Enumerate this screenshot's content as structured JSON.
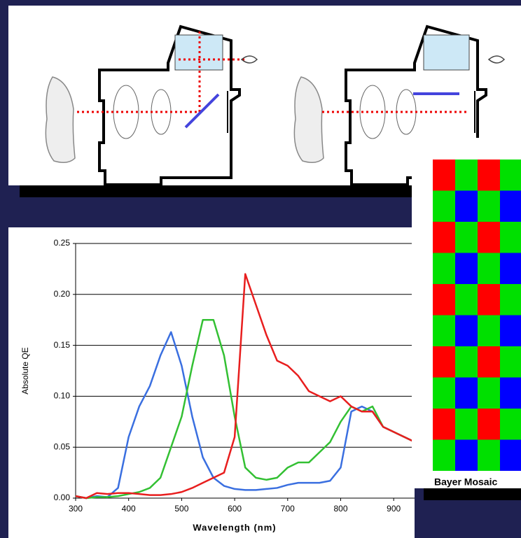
{
  "chart_data": {
    "type": "line",
    "x_label": "Wavelength (nm)",
    "y_label": "Absolute QE",
    "x": [
      300,
      320,
      340,
      360,
      380,
      400,
      420,
      440,
      460,
      480,
      500,
      520,
      540,
      560,
      580,
      600,
      620,
      640,
      660,
      680,
      700,
      720,
      740,
      760,
      780,
      800,
      820,
      840,
      860,
      880,
      900,
      920,
      940
    ],
    "series": [
      {
        "color": "#3a6fe0",
        "values": [
          0.002,
          0,
          0.002,
          0.001,
          0.01,
          0.06,
          0.09,
          0.11,
          0.14,
          0.163,
          0.13,
          0.08,
          0.04,
          0.02,
          0.012,
          0.009,
          0.008,
          0.008,
          0.009,
          0.01,
          0.013,
          0.015,
          0.015,
          0.015,
          0.017,
          0.03,
          0.085,
          0.09,
          0.085,
          0.07,
          0.065,
          0.06,
          0.055
        ]
      },
      {
        "color": "#33c033",
        "values": [
          0.002,
          0,
          0.001,
          0.001,
          0.002,
          0.004,
          0.006,
          0.01,
          0.02,
          0.05,
          0.08,
          0.13,
          0.175,
          0.175,
          0.14,
          0.08,
          0.03,
          0.02,
          0.018,
          0.02,
          0.03,
          0.035,
          0.035,
          0.045,
          0.055,
          0.075,
          0.09,
          0.085,
          0.09,
          0.07,
          0.065,
          0.06,
          0.055
        ]
      },
      {
        "color": "#e81e1e",
        "values": [
          0.002,
          0,
          0.005,
          0.004,
          0.005,
          0.005,
          0.004,
          0.003,
          0.003,
          0.004,
          0.006,
          0.01,
          0.015,
          0.02,
          0.025,
          0.06,
          0.22,
          0.19,
          0.16,
          0.135,
          0.13,
          0.12,
          0.105,
          0.1,
          0.095,
          0.1,
          0.09,
          0.085,
          0.085,
          0.07,
          0.065,
          0.06,
          0.055
        ]
      }
    ],
    "xlim": [
      300,
      950
    ],
    "xticks": [
      300,
      400,
      500,
      600,
      700,
      800,
      900
    ],
    "ylim": [
      0,
      0.25
    ],
    "yticks": [
      {
        "value": 0,
        "label": "0.00"
      },
      {
        "value": 0.05,
        "label": "0.05"
      },
      {
        "value": 0.1,
        "label": "0.10"
      },
      {
        "value": 0.15,
        "label": "0.15"
      },
      {
        "value": 0.2,
        "label": "0.20"
      },
      {
        "value": 0.25,
        "label": "0.25"
      }
    ],
    "grid": true
  },
  "bayer_label": "Bayer Mosaic"
}
